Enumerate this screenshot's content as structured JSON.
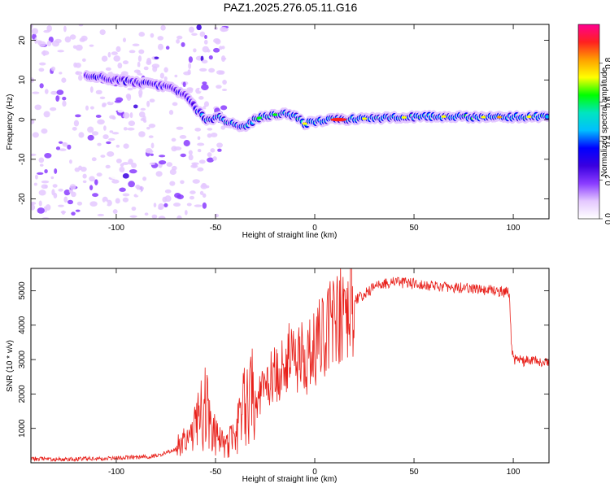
{
  "title": "PAZ1.2025.276.05.11.G16",
  "chart_data": [
    {
      "type": "heatmap",
      "xlabel": "Height of straight line (km)",
      "ylabel": "Frequency (Hz)",
      "xlim": [
        -143,
        118
      ],
      "ylim": [
        -25,
        24
      ],
      "xticks": [
        -100,
        -50,
        0,
        50,
        100
      ],
      "yticks": [
        -20,
        -10,
        0,
        10,
        20
      ],
      "colorbar": {
        "label": "Normalized spectral amplitude",
        "range": [
          0,
          1
        ],
        "ticks": [
          0.0,
          0.2,
          0.4,
          0.6,
          0.8
        ],
        "colormap": [
          "#ffffff",
          "#e4c8ff",
          "#8a3cff",
          "#3a00e0",
          "#0000ff",
          "#00bfff",
          "#00e5c0",
          "#00ff00",
          "#ffff00",
          "#ffa000",
          "#ff2020",
          "#ff0090"
        ]
      },
      "ridge": [
        {
          "x": -112,
          "f": 11
        },
        {
          "x": -100,
          "f": 10
        },
        {
          "x": -85,
          "f": 9
        },
        {
          "x": -72,
          "f": 8
        },
        {
          "x": -65,
          "f": 6
        },
        {
          "x": -60,
          "f": 3
        },
        {
          "x": -55,
          "f": 0
        },
        {
          "x": -48,
          "f": 0.5
        },
        {
          "x": -42,
          "f": -1
        },
        {
          "x": -36,
          "f": -2
        },
        {
          "x": -30,
          "f": 0
        },
        {
          "x": -25,
          "f": 1
        },
        {
          "x": -15,
          "f": 1.5
        },
        {
          "x": -10,
          "f": 1
        },
        {
          "x": -5,
          "f": -1
        },
        {
          "x": 0,
          "f": -0.5
        },
        {
          "x": 8,
          "f": 0
        },
        {
          "x": 30,
          "f": 0.3
        },
        {
          "x": 60,
          "f": 0.8
        },
        {
          "x": 90,
          "f": 0.6
        },
        {
          "x": 118,
          "f": 0.8
        }
      ],
      "peak": {
        "x": 12,
        "f": 0,
        "amplitude": 1.0
      }
    },
    {
      "type": "line",
      "xlabel": "Height of straight line (km)",
      "ylabel": "SNR (10 * v/v)",
      "xlim": [
        -143,
        118
      ],
      "ylim": [
        0,
        5650
      ],
      "xticks": [
        -100,
        -50,
        0,
        50,
        100
      ],
      "yticks": [
        1000,
        2000,
        3000,
        4000,
        5000
      ],
      "series": [
        {
          "name": "SNR",
          "color": "#e8201a",
          "x": [
            -143,
            -130,
            -120,
            -110,
            -100,
            -90,
            -80,
            -75,
            -70,
            -65,
            -62,
            -58,
            -55,
            -52,
            -48,
            -44,
            -40,
            -36,
            -32,
            -28,
            -24,
            -20,
            -16,
            -12,
            -8,
            -4,
            0,
            4,
            8,
            12,
            16,
            20,
            25,
            30,
            35,
            40,
            50,
            60,
            70,
            80,
            90,
            98,
            99,
            100,
            105,
            110,
            118
          ],
          "y": [
            120,
            100,
            110,
            120,
            140,
            160,
            200,
            280,
            420,
            600,
            800,
            1300,
            1600,
            900,
            600,
            500,
            800,
            1500,
            2000,
            1900,
            2200,
            2600,
            2700,
            2900,
            3100,
            3000,
            3300,
            3700,
            3950,
            4200,
            4550,
            4700,
            4900,
            5100,
            5200,
            5250,
            5200,
            5150,
            5100,
            5050,
            5000,
            4950,
            3500,
            3000,
            2950,
            2950,
            2950
          ]
        }
      ]
    }
  ]
}
